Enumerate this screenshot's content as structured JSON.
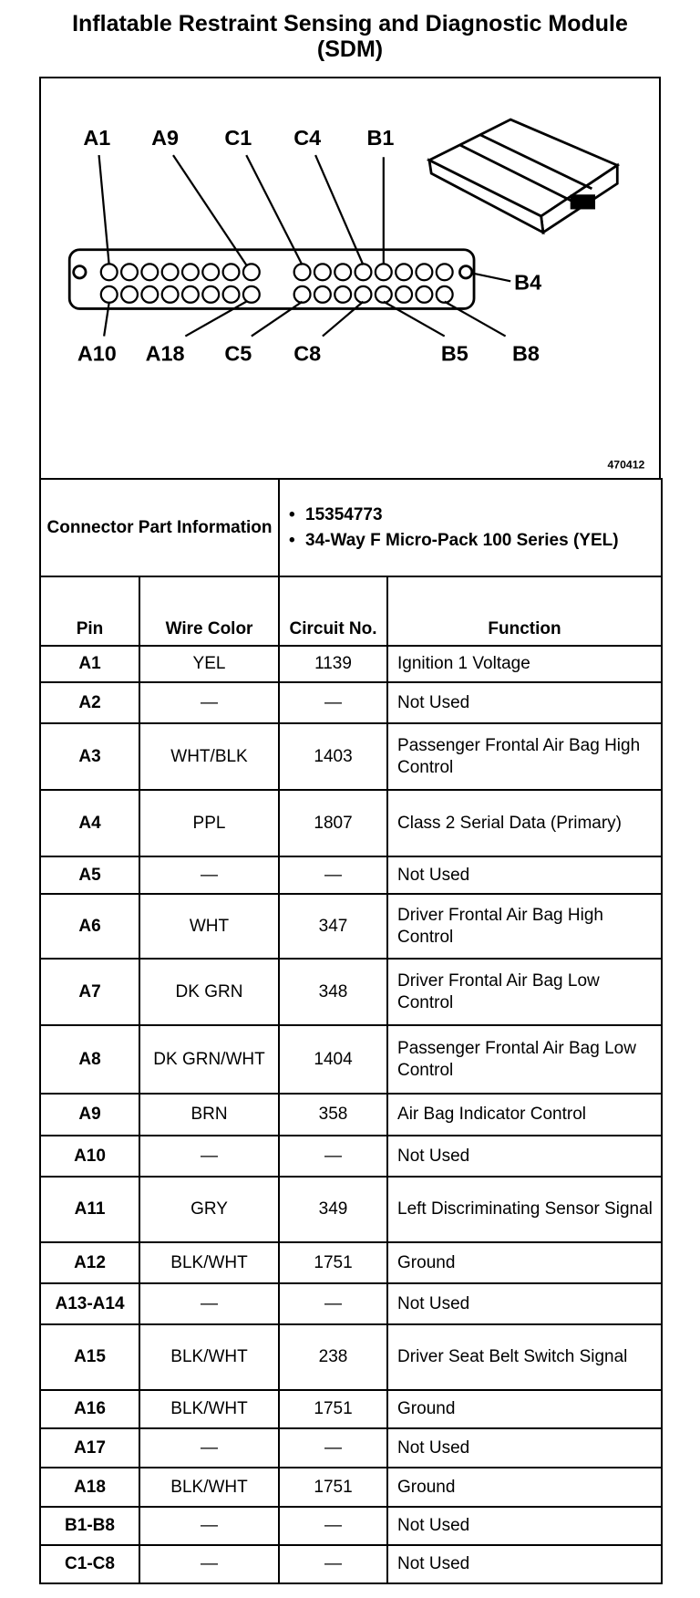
{
  "header": {
    "title": "Inflatable Restraint Sensing and Diagnostic Module (SDM)"
  },
  "diagram": {
    "labels": [
      "A1",
      "A9",
      "C1",
      "C4",
      "B1",
      "B4",
      "A10",
      "A18",
      "C5",
      "C8",
      "B5",
      "B8"
    ],
    "figure_number": "470412"
  },
  "connector": {
    "label": "Connector Part Information",
    "items": [
      "15354773",
      "34-Way F Micro-Pack 100 Series (YEL)"
    ]
  },
  "table": {
    "columns": [
      "Pin",
      "Wire Color",
      "Circuit No.",
      "Function"
    ],
    "rows": [
      [
        "A1",
        "YEL",
        "1139",
        "Ignition 1 Voltage"
      ],
      [
        "A2",
        "—",
        "—",
        "Not Used"
      ],
      [
        "A3",
        "WHT/BLK",
        "1403",
        "Passenger Frontal Air Bag High Control"
      ],
      [
        "A4",
        "PPL",
        "1807",
        "Class 2 Serial Data (Primary)"
      ],
      [
        "A5",
        "—",
        "—",
        "Not Used"
      ],
      [
        "A6",
        "WHT",
        "347",
        "Driver Frontal Air Bag High Control"
      ],
      [
        "A7",
        "DK GRN",
        "348",
        "Driver Frontal Air Bag Low Control"
      ],
      [
        "A8",
        "DK GRN/WHT",
        "1404",
        "Passenger Frontal Air Bag Low Control"
      ],
      [
        "A9",
        "BRN",
        "358",
        "Air Bag Indicator Control"
      ],
      [
        "A10",
        "—",
        "—",
        "Not Used"
      ],
      [
        "A11",
        "GRY",
        "349",
        "Left Discriminating Sensor Signal"
      ],
      [
        "A12",
        "BLK/WHT",
        "1751",
        "Ground"
      ],
      [
        "A13-A14",
        "—",
        "—",
        "Not Used"
      ],
      [
        "A15",
        "BLK/WHT",
        "238",
        "Driver Seat Belt Switch Signal"
      ],
      [
        "A16",
        "BLK/WHT",
        "1751",
        "Ground"
      ],
      [
        "A17",
        "—",
        "—",
        "Not Used"
      ],
      [
        "A18",
        "BLK/WHT",
        "1751",
        "Ground"
      ],
      [
        "B1-B8",
        "—",
        "—",
        "Not Used"
      ],
      [
        "C1-C8",
        "—",
        "—",
        "Not Used"
      ]
    ]
  }
}
